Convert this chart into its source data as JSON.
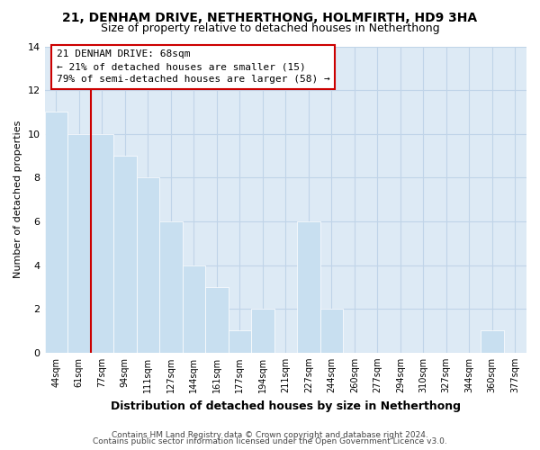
{
  "title_line1": "21, DENHAM DRIVE, NETHERTHONG, HOLMFIRTH, HD9 3HA",
  "title_line2": "Size of property relative to detached houses in Netherthong",
  "xlabel": "Distribution of detached houses by size in Netherthong",
  "ylabel": "Number of detached properties",
  "bar_labels": [
    "44sqm",
    "61sqm",
    "77sqm",
    "94sqm",
    "111sqm",
    "127sqm",
    "144sqm",
    "161sqm",
    "177sqm",
    "194sqm",
    "211sqm",
    "227sqm",
    "244sqm",
    "260sqm",
    "277sqm",
    "294sqm",
    "310sqm",
    "327sqm",
    "344sqm",
    "360sqm",
    "377sqm"
  ],
  "bar_heights": [
    11,
    10,
    10,
    9,
    8,
    6,
    4,
    3,
    1,
    2,
    0,
    6,
    2,
    0,
    0,
    0,
    0,
    0,
    0,
    1,
    0
  ],
  "bar_color": "#c8dff0",
  "bar_edge_color": "#ffffff",
  "vline_color": "#cc0000",
  "annotation_title": "21 DENHAM DRIVE: 68sqm",
  "annotation_line1": "← 21% of detached houses are smaller (15)",
  "annotation_line2": "79% of semi-detached houses are larger (58) →",
  "annotation_box_facecolor": "#ffffff",
  "annotation_box_edgecolor": "#cc0000",
  "ylim": [
    0,
    14
  ],
  "yticks": [
    0,
    2,
    4,
    6,
    8,
    10,
    12,
    14
  ],
  "footer_line1": "Contains HM Land Registry data © Crown copyright and database right 2024.",
  "footer_line2": "Contains public sector information licensed under the Open Government Licence v3.0.",
  "fig_bg_color": "#ffffff",
  "plot_bg_color": "#ddeaf5",
  "grid_color": "#c0d4e8",
  "title_fontsize": 10,
  "subtitle_fontsize": 9
}
